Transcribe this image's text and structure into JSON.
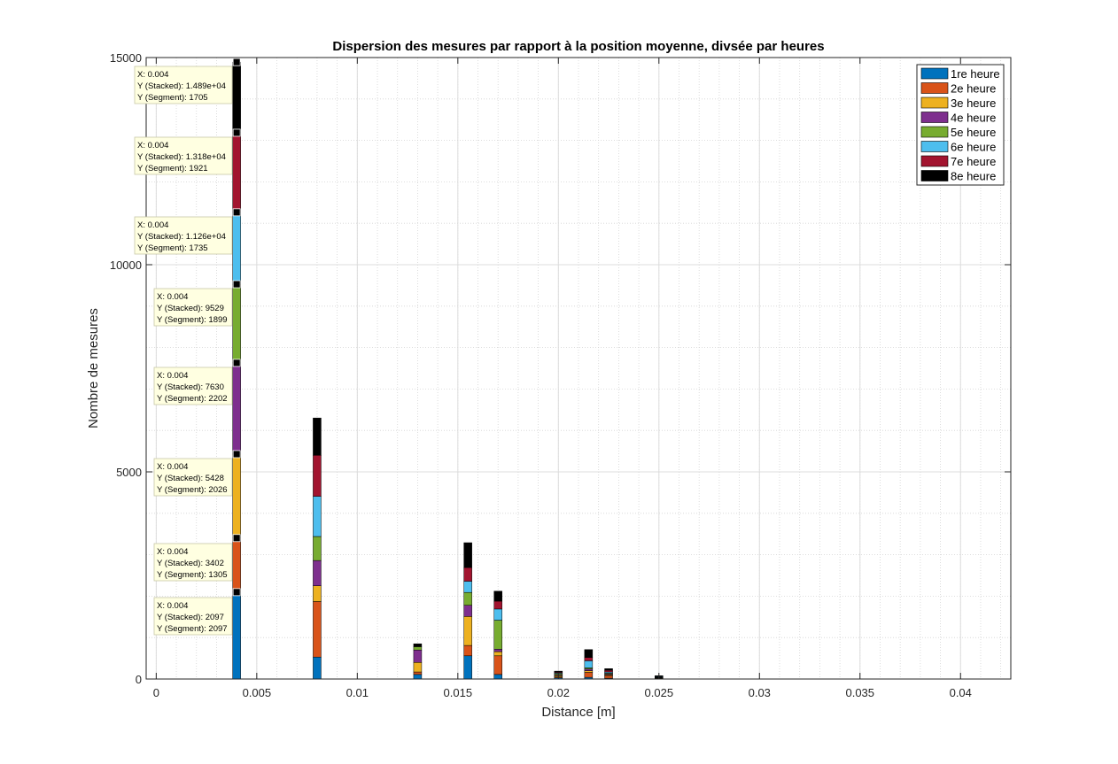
{
  "chart_data": {
    "type": "bar",
    "stacked": true,
    "title": "Dispersion des mesures par rapport à la position moyenne, divsée par heures",
    "xlabel": "Distance [m]",
    "ylabel": "Nombre de mesures",
    "xlim": [
      -0.0005,
      0.0425
    ],
    "ylim": [
      0,
      15000
    ],
    "xticks": [
      0,
      0.005,
      0.01,
      0.015,
      0.02,
      0.025,
      0.03,
      0.035,
      0.04
    ],
    "xtick_labels": [
      "0",
      "0.005",
      "0.01",
      "0.015",
      "0.02",
      "0.025",
      "0.03",
      "0.035",
      "0.04"
    ],
    "yticks": [
      0,
      5000,
      10000,
      15000
    ],
    "ytick_labels": [
      "0",
      "5000",
      "10000",
      "15000"
    ],
    "grid": true,
    "minor_grid": true,
    "legend_position": "top-right",
    "series_colors": [
      "#0072BD",
      "#D95319",
      "#EDB120",
      "#7E2F8E",
      "#77AC30",
      "#4DBEEE",
      "#A2142F",
      "#000000"
    ],
    "x": [
      0.004,
      0.008,
      0.013,
      0.0155,
      0.017,
      0.02,
      0.0215,
      0.0225,
      0.025
    ],
    "series": [
      {
        "name": "1re heure",
        "values": [
          2097,
          530,
          110,
          560,
          110,
          30,
          40,
          20,
          15
        ]
      },
      {
        "name": "2e heure",
        "values": [
          1305,
          1340,
          60,
          250,
          450,
          20,
          120,
          60,
          10
        ]
      },
      {
        "name": "3e heure",
        "values": [
          2026,
          380,
          230,
          700,
          100,
          30,
          40,
          20,
          5
        ]
      },
      {
        "name": "4e heure",
        "values": [
          2202,
          610,
          300,
          270,
          60,
          20,
          40,
          20,
          5
        ]
      },
      {
        "name": "5e heure",
        "values": [
          1899,
          580,
          80,
          310,
          700,
          30,
          30,
          20,
          10
        ]
      },
      {
        "name": "6e heure",
        "values": [
          1735,
          970,
          0,
          270,
          270,
          20,
          170,
          30,
          15
        ]
      },
      {
        "name": "7e heure",
        "values": [
          1921,
          990,
          0,
          330,
          190,
          20,
          80,
          40,
          10
        ]
      },
      {
        "name": "8e heure",
        "values": [
          1705,
          900,
          70,
          600,
          240,
          20,
          190,
          40,
          10
        ]
      }
    ],
    "datatips": [
      {
        "x": "X: 0.004",
        "stacked": "Y (Stacked): 1.489e+04",
        "segment": "Y (Segment): 1705"
      },
      {
        "x": "X: 0.004",
        "stacked": "Y (Stacked): 1.318e+04",
        "segment": "Y (Segment): 1921"
      },
      {
        "x": "X: 0.004",
        "stacked": "Y (Stacked): 1.126e+04",
        "segment": "Y (Segment): 1735"
      },
      {
        "x": "X: 0.004",
        "stacked": "Y (Stacked): 9529",
        "segment": "Y (Segment): 1899"
      },
      {
        "x": "X: 0.004",
        "stacked": "Y (Stacked): 7630",
        "segment": "Y (Segment): 2202"
      },
      {
        "x": "X: 0.004",
        "stacked": "Y (Stacked): 5428",
        "segment": "Y (Segment): 2026"
      },
      {
        "x": "X: 0.004",
        "stacked": "Y (Stacked): 3402",
        "segment": "Y (Segment): 1305"
      },
      {
        "x": "X: 0.004",
        "stacked": "Y (Stacked): 2097",
        "segment": "Y (Segment): 2097"
      }
    ]
  }
}
